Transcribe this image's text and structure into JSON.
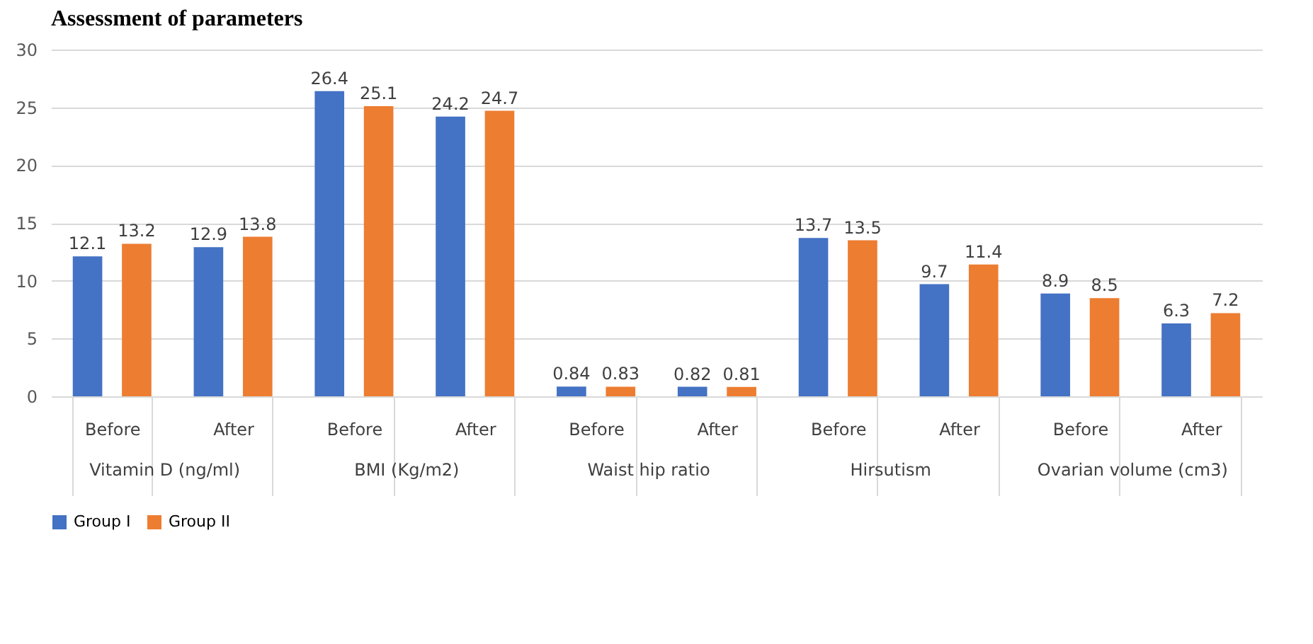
{
  "chart_data": {
    "type": "bar",
    "title": "Assessment of parameters",
    "categories": [
      "Before",
      "After",
      "Before",
      "After",
      "Before",
      "After",
      "Before",
      "After",
      "Before",
      "After"
    ],
    "annotations": [
      "Vitamin D (ng/ml)",
      "BMI (Kg/m2)",
      "Waist hip ratio",
      "Hirsutism",
      "Ovarian volume (cm3)"
    ],
    "series": [
      {
        "name": "Group I",
        "color": "#4472c4",
        "values": [
          12.1,
          12.9,
          26.4,
          24.2,
          0.84,
          0.82,
          13.7,
          9.7,
          8.9,
          6.3
        ]
      },
      {
        "name": "Group II",
        "color": "#ed7d31",
        "values": [
          13.2,
          13.8,
          25.1,
          24.7,
          0.83,
          0.81,
          13.5,
          11.4,
          8.5,
          7.2
        ]
      }
    ],
    "ylim": [
      0,
      30
    ],
    "yticks": [
      0,
      5,
      10,
      15,
      20,
      25,
      30
    ],
    "grid": "y",
    "legend": "bottom",
    "data_labels": true
  }
}
